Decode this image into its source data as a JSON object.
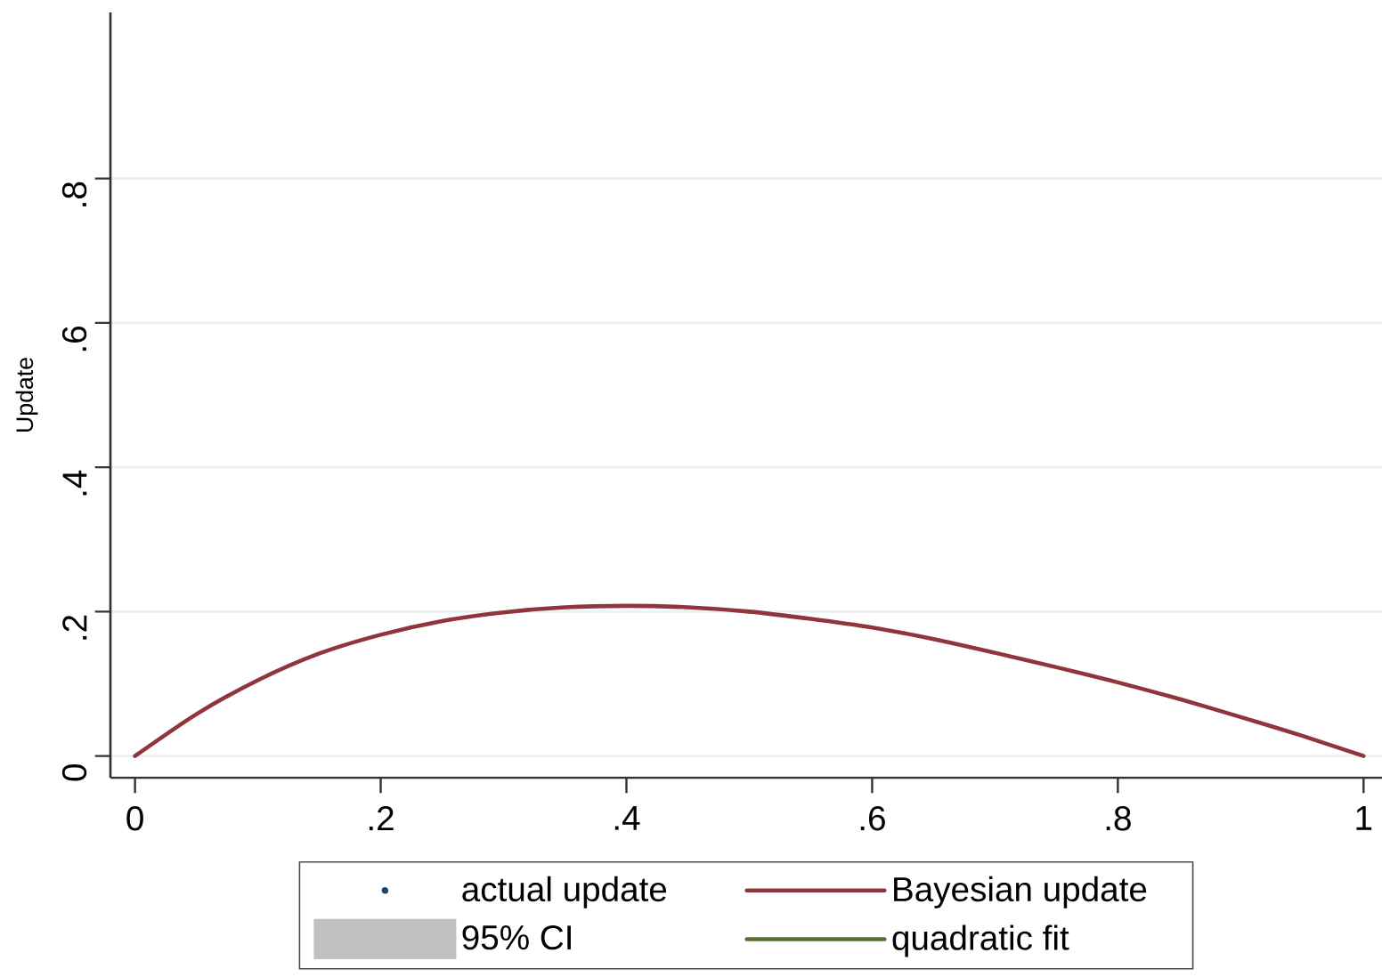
{
  "chart_data": {
    "type": "line",
    "ylabel": "Update",
    "x": [
      0,
      0.05,
      0.1,
      0.15,
      0.2,
      0.25,
      0.3,
      0.35,
      0.4,
      0.45,
      0.5,
      0.55,
      0.6,
      0.65,
      0.7,
      0.75,
      0.8,
      0.85,
      0.9,
      0.95,
      1
    ],
    "series": [
      {
        "name": "actual update",
        "type": "scatter",
        "color": "#1a476f",
        "marker": "circle",
        "values": [
          null,
          null,
          null,
          null,
          null,
          null,
          null,
          null,
          null,
          null,
          null,
          null,
          null,
          null,
          null,
          null,
          null,
          null,
          null,
          null,
          null
        ]
      },
      {
        "name": "Bayesian update",
        "color": "#90353b",
        "values": [
          0,
          0.058,
          0.105,
          0.142,
          0.168,
          0.187,
          0.199,
          0.206,
          0.208,
          0.206,
          0.2,
          0.19,
          0.178,
          0.162,
          0.143,
          0.123,
          0.102,
          0.079,
          0.054,
          0.028,
          0
        ]
      },
      {
        "name": "95% CI",
        "type": "area",
        "color": "#c0c0c0",
        "values": [
          null,
          null,
          null,
          null,
          null,
          null,
          null,
          null,
          null,
          null,
          null,
          null,
          null,
          null,
          null,
          null,
          null,
          null,
          null,
          null,
          null
        ]
      },
      {
        "name": "quadratic fit",
        "type": "line",
        "color": "#55752f",
        "values": [
          null,
          null,
          null,
          null,
          null,
          null,
          null,
          null,
          null,
          null,
          null,
          null,
          null,
          null,
          null,
          null,
          null,
          null,
          null,
          null,
          null
        ]
      }
    ],
    "xlim": [
      -0.02,
      1.015
    ],
    "xticks": [
      0,
      {
        "value": 0.2,
        "label": ".2"
      },
      {
        "value": 0.4,
        "label": ".4"
      },
      {
        "value": 0.6,
        "label": ".6"
      },
      {
        "value": 0.8,
        "label": ".8"
      },
      1
    ],
    "ylim": [
      -0.03,
      1.03
    ],
    "yticks": [
      0,
      {
        "value": 0.2,
        "label": ".2"
      },
      {
        "value": 0.4,
        "label": ".4"
      },
      {
        "value": 0.6,
        "label": ".6"
      },
      {
        "value": 0.8,
        "label": ".8"
      }
    ],
    "grid": "y",
    "legend": "bottom"
  }
}
